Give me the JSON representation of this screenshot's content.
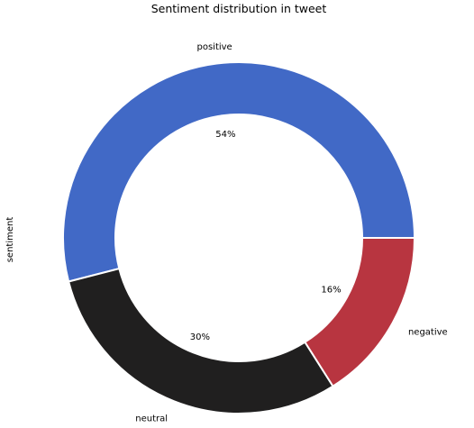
{
  "chart_data": {
    "type": "pie",
    "style": "donut",
    "title": "Sentiment distribution in tweet",
    "ylabel": "sentiment",
    "categories": [
      "positive",
      "neutral",
      "negative"
    ],
    "values": [
      54,
      30,
      16
    ],
    "value_labels": [
      "54%",
      "30%",
      "16%"
    ],
    "colors": [
      "#4169c6",
      "#201f1f",
      "#b83540"
    ]
  }
}
